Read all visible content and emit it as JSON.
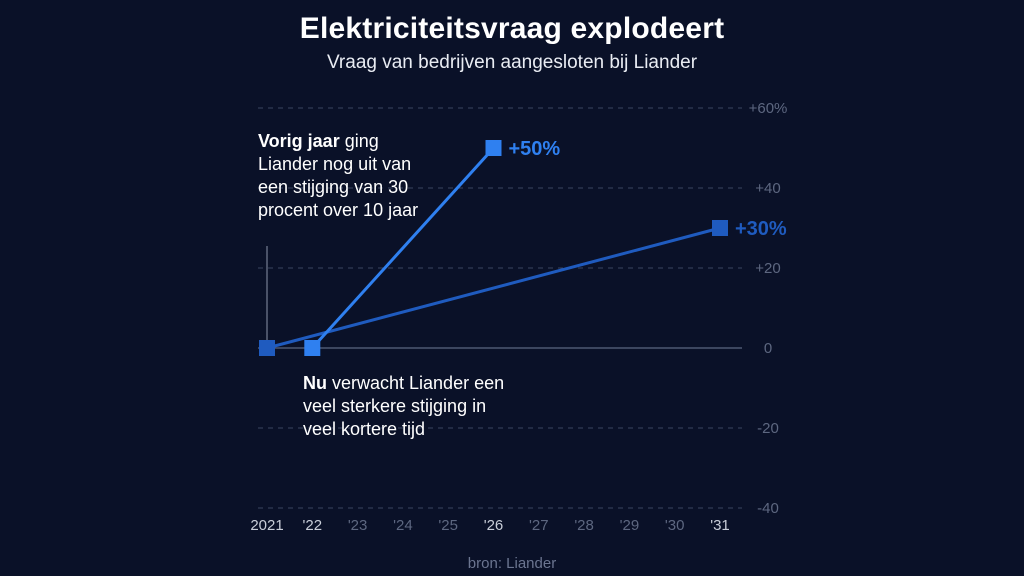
{
  "title": "Elektriciteitsvraag explodeert",
  "subtitle": "Vraag van bedrijven aangesloten bij Liander",
  "source": "bron: Liander",
  "annotations": {
    "vorig_bold": "Vorig jaar",
    "vorig_rest": " ging Liander nog uit van een stijging van 30 procent over 10 jaar",
    "nu_bold": "Nu",
    "nu_rest": " verwacht Liander een veel sterkere stijging in veel kortere tijd"
  },
  "colors": {
    "background": "#0a1128",
    "forecast_old": "#1f5bbf",
    "forecast_new": "#2f80f0"
  },
  "chart_data": {
    "type": "line",
    "title": "Elektriciteitsvraag explodeert",
    "subtitle": "Vraag van bedrijven aangesloten bij Liander",
    "x_ticks": [
      "2021",
      "'22",
      "'23",
      "'24",
      "'25",
      "'26",
      "'27",
      "'28",
      "'29",
      "'30",
      "'31"
    ],
    "y_ticks": [
      "+60%",
      "+40",
      "+20",
      "0",
      "-20",
      "-40"
    ],
    "ylim": [
      -40,
      60
    ],
    "xlim": [
      2021,
      2031
    ],
    "grid": true,
    "series": [
      {
        "x": [
          2021,
          2031
        ],
        "y": [
          0,
          30
        ],
        "end_label": "+30%",
        "color": "#1f5bbf"
      },
      {
        "x": [
          2022,
          2026
        ],
        "y": [
          0,
          50
        ],
        "end_label": "+50%",
        "color": "#2f80f0"
      }
    ]
  }
}
